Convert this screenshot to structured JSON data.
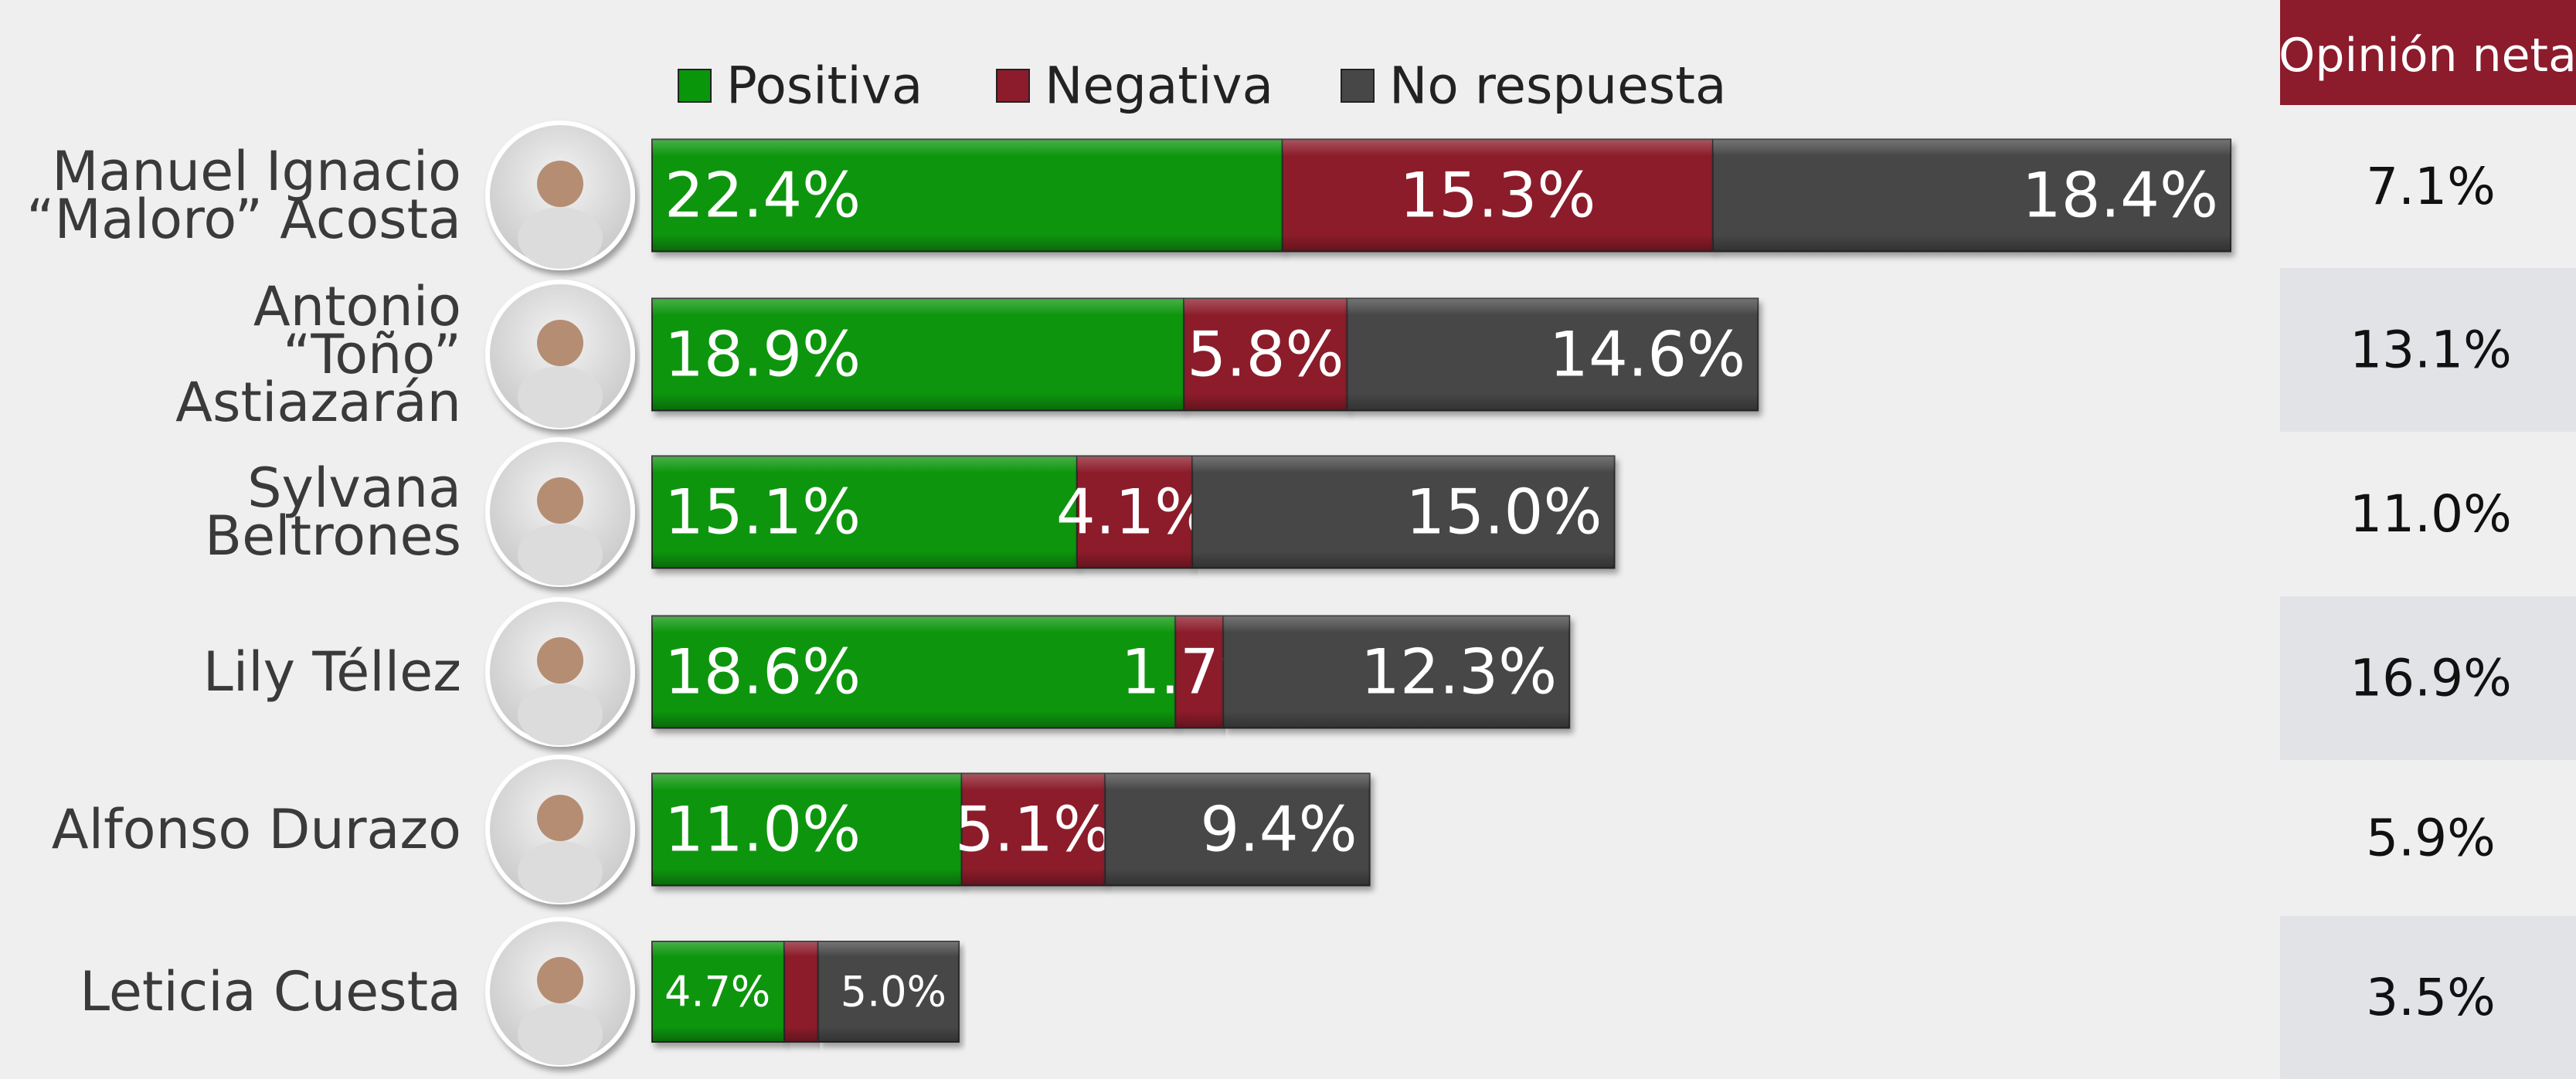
{
  "chart_data": {
    "type": "stacked_bar_horizontal",
    "categories": [
      "Manuel Ignacio\n“Maloro” Acosta",
      "Antonio\n“Toño” Astiazarán",
      "Sylvana Beltrones",
      "Lily Téllez",
      "Alfonso Durazo",
      "Leticia Cuesta"
    ],
    "series": [
      {
        "name": "Positiva",
        "color": "#0a960a",
        "values": [
          22.4,
          18.9,
          15.1,
          18.6,
          11.0,
          4.7
        ],
        "value_labels": [
          "22.4%",
          "18.9%",
          "15.1%",
          "18.6%",
          "11.0%",
          "4.7%"
        ]
      },
      {
        "name": "Negativa",
        "color": "#8c1b2c",
        "values": [
          15.3,
          5.8,
          4.1,
          1.7,
          5.1,
          1.2
        ],
        "value_labels": [
          "15.3%",
          "5.8%",
          "4.1%",
          "1.7%",
          "5.1%",
          null
        ]
      },
      {
        "name": "No respuesta",
        "color": "#474747",
        "values": [
          18.4,
          14.6,
          15.0,
          12.3,
          9.4,
          5.0
        ],
        "value_labels": [
          "18.4%",
          "14.6%",
          "15.0%",
          "12.3%",
          "9.4%",
          "5.0%"
        ]
      }
    ],
    "net_opinion": {
      "title": "Opinión neta",
      "values": [
        7.1,
        13.1,
        11.0,
        16.9,
        5.9,
        3.5
      ],
      "value_labels": [
        "7.1%",
        "13.1%",
        "11.0%",
        "16.9%",
        "5.9%",
        "3.5%"
      ]
    }
  }
}
